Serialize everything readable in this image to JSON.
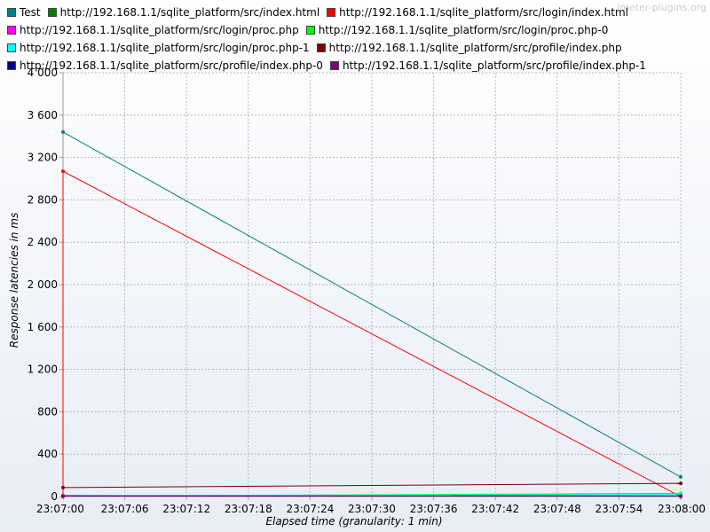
{
  "watermark": "jmeter-plugins.org",
  "chart_data": {
    "type": "line",
    "xlabel": "Elapsed time (granularity: 1 min)",
    "ylabel": "Response latencies in ms",
    "ylim": [
      0,
      4000
    ],
    "yticks": [
      "0",
      "400",
      "800",
      "1 200",
      "1 600",
      "2 000",
      "2 400",
      "2 800",
      "3 200",
      "3 600",
      "4 000"
    ],
    "xticks": [
      "23:07:00",
      "23:07:06",
      "23:07:12",
      "23:07:18",
      "23:07:24",
      "23:07:30",
      "23:07:36",
      "23:07:42",
      "23:07:48",
      "23:07:54",
      "23:08:00"
    ],
    "xlim_seconds": [
      0,
      60
    ],
    "grid": true,
    "legend_position": "top",
    "series": [
      {
        "name": "Test",
        "color": "#008080",
        "x": [
          0,
          60
        ],
        "values": [
          3440,
          185
        ]
      },
      {
        "name": "http://192.168.1.1/sqlite_platform/src/index.html",
        "color": "#008000",
        "x": [
          0,
          60
        ],
        "values": [
          10,
          5
        ]
      },
      {
        "name": "http://192.168.1.1/sqlite_platform/src/login/index.html",
        "color": "#ff0000",
        "x": [
          0,
          0,
          60
        ],
        "values": [
          0,
          3070,
          0
        ]
      },
      {
        "name": "http://192.168.1.1/sqlite_platform/src/login/proc.php",
        "color": "#ff00ff",
        "x": [
          0,
          60
        ],
        "values": [
          5,
          5
        ]
      },
      {
        "name": "http://192.168.1.1/sqlite_platform/src/login/proc.php-0",
        "color": "#00ff00",
        "x": [
          0,
          60
        ],
        "values": [
          5,
          30
        ]
      },
      {
        "name": "http://192.168.1.1/sqlite_platform/src/login/proc.php-1",
        "color": "#00ffff",
        "x": [
          0,
          60
        ],
        "values": [
          8,
          20
        ]
      },
      {
        "name": "http://192.168.1.1/sqlite_platform/src/profile/index.php",
        "color": "#800000",
        "x": [
          0,
          60
        ],
        "values": [
          85,
          125
        ]
      },
      {
        "name": "http://192.168.1.1/sqlite_platform/src/profile/index.php-0",
        "color": "#000080",
        "x": [
          0,
          60
        ],
        "values": [
          5,
          5
        ]
      },
      {
        "name": "http://192.168.1.1/sqlite_platform/src/profile/index.php-1",
        "color": "#800080",
        "x": [
          0,
          60
        ],
        "values": [
          5,
          5
        ]
      }
    ]
  }
}
